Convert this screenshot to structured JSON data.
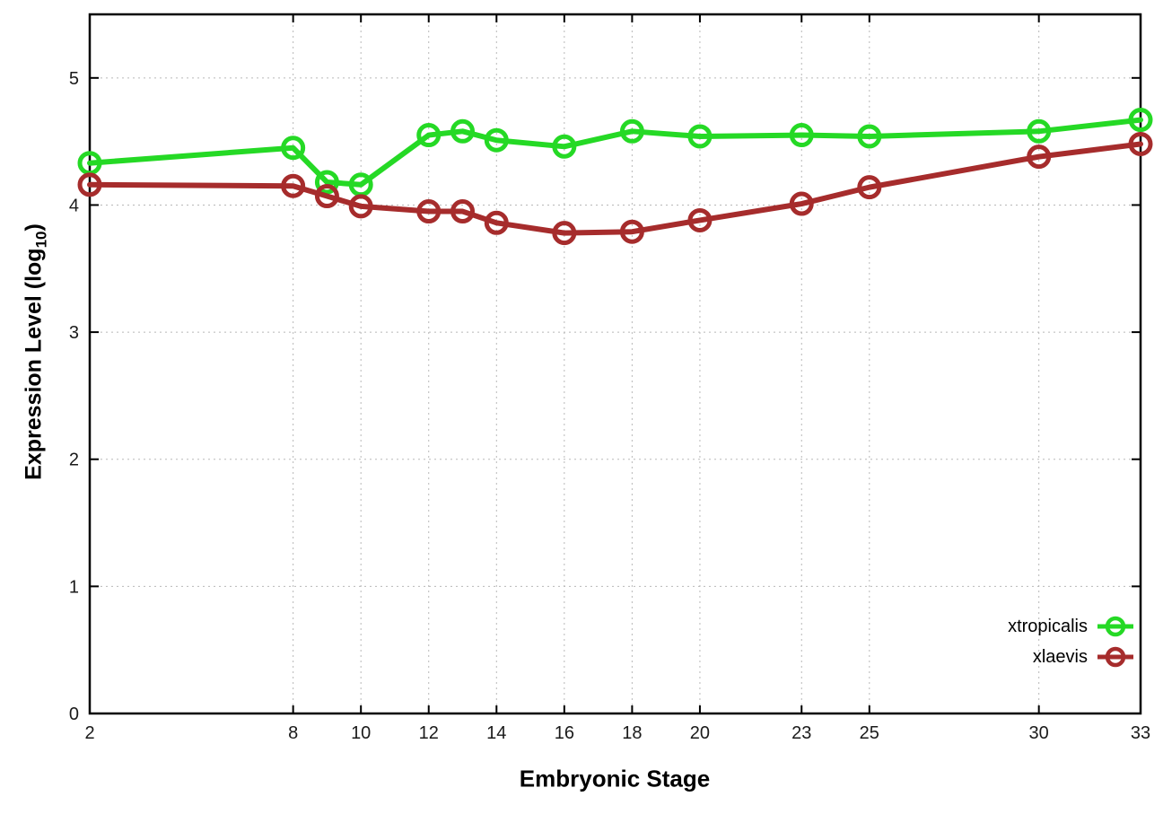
{
  "figure": {
    "xlabel": "Embryonic Stage",
    "ylabel_prefix": "Expression Level (log",
    "ylabel_sub": "10",
    "ylabel_suffix": ")"
  },
  "chart_data": {
    "type": "line",
    "title": "",
    "xlabel": "Embryonic Stage",
    "ylabel": "Expression Level (log10)",
    "x": [
      2,
      8,
      9,
      10,
      12,
      13,
      14,
      16,
      18,
      20,
      23,
      25,
      30,
      33
    ],
    "series": [
      {
        "name": "xtropicalis",
        "color": "#25d925",
        "values": [
          4.33,
          4.45,
          4.18,
          4.16,
          4.55,
          4.58,
          4.51,
          4.46,
          4.58,
          4.54,
          4.55,
          4.54,
          4.58,
          4.67
        ]
      },
      {
        "name": "xlaevis",
        "color": "#a62c2c",
        "values": [
          4.16,
          4.15,
          4.07,
          3.99,
          3.95,
          3.95,
          3.86,
          3.78,
          3.79,
          3.88,
          4.01,
          4.14,
          4.38,
          4.48
        ]
      }
    ],
    "xticks": [
      2,
      8,
      10,
      12,
      14,
      16,
      18,
      20,
      23,
      25,
      30,
      33
    ],
    "yticks": [
      0,
      1,
      2,
      3,
      4,
      5
    ],
    "xlim": [
      2,
      33
    ],
    "ylim": [
      0,
      5.5
    ],
    "grid": true,
    "grid_style": "dotted",
    "grid_color": "#b8b8b8",
    "border_color": "#000000",
    "marker": "open-circle",
    "legend_position": "inside-bottom-right"
  }
}
